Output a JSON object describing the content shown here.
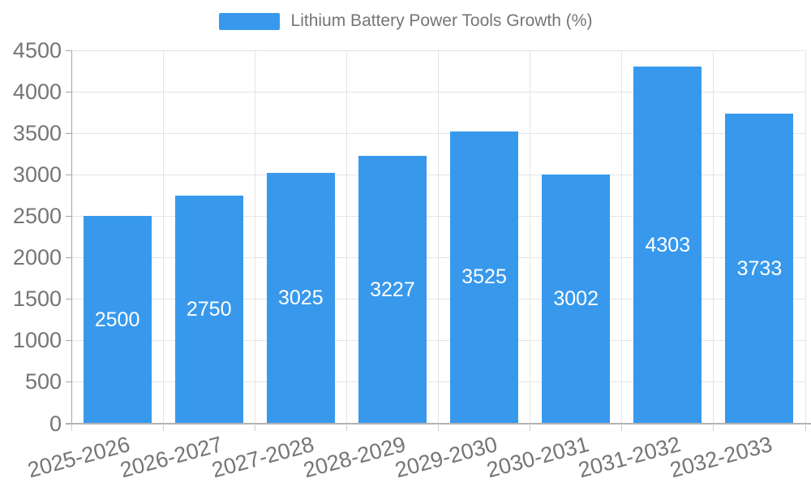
{
  "legend": {
    "label": "Lithium Battery Power Tools Growth (%)"
  },
  "chart_data": {
    "type": "bar",
    "title": "Lithium Battery Power Tools Growth (%)",
    "categories": [
      "2025-2026",
      "2026-2027",
      "2027-2028",
      "2028-2029",
      "2029-2030",
      "2030-2031",
      "2031-2032",
      "2032-2033"
    ],
    "values": [
      2500,
      2750,
      3025,
      3227,
      3525,
      3002,
      4303,
      3733
    ],
    "value_labels": [
      "2500",
      "2750",
      "3025",
      "3227",
      "3525",
      "3002",
      "4303",
      "3733"
    ],
    "xlabel": "",
    "ylabel": "",
    "ylim": [
      0,
      4500
    ],
    "ytick_step": 500,
    "yticks": [
      "0",
      "500",
      "1000",
      "1500",
      "2000",
      "2500",
      "3000",
      "3500",
      "4000",
      "4500"
    ],
    "grid": true,
    "legend_position": "top-center",
    "colors": {
      "bar": "#3899EC",
      "value_label": "#FFFFFF",
      "axis_text": "#757575",
      "grid_line": "#E4E4E4",
      "axis_line": "#A6A6A6",
      "baseline": "#B3B3B3",
      "x_tick": "#CFCFCF",
      "background": "#FFFFFF"
    }
  }
}
